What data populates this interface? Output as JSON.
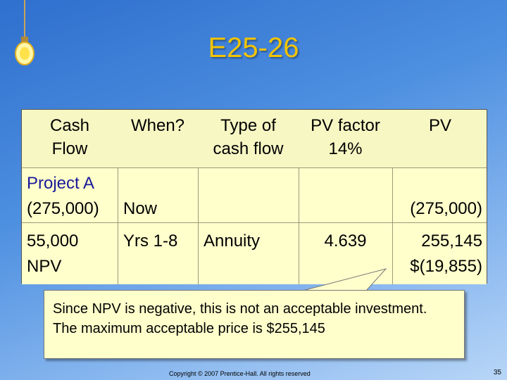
{
  "title": "E25-26",
  "table": {
    "headers": [
      {
        "line1": "Cash",
        "line2": "Flow"
      },
      {
        "line1": "When?",
        "line2": ""
      },
      {
        "line1": "Type of",
        "line2": "cash flow"
      },
      {
        "line1": "PV factor",
        "line2": "14%"
      },
      {
        "line1": "PV",
        "line2": ""
      }
    ],
    "project_label": "Project A",
    "rows": [
      {
        "cash_flow": "(275,000)",
        "when": "Now",
        "type": "",
        "factor": "",
        "pv": "(275,000)"
      },
      {
        "cash_flow": "55,000",
        "when": "Yrs 1-8",
        "type": "Annuity",
        "factor": "4.639",
        "pv": "255,145"
      },
      {
        "cash_flow": "NPV",
        "when": "",
        "type": "",
        "factor": "",
        "pv": "$(19,855)"
      }
    ]
  },
  "callout": {
    "text": "Since NPV is negative, this is not an acceptable investment.  The maximum acceptable price is $255,145"
  },
  "footer": {
    "copyright": "Copyright © 2007 Prentice-Hall. All rights reserved",
    "page": "35"
  },
  "colors": {
    "title": "#f2c400",
    "table_fill": "#ffffcc",
    "accent_text": "#1a1a9a"
  },
  "icons": [
    "light-bulb-icon"
  ]
}
